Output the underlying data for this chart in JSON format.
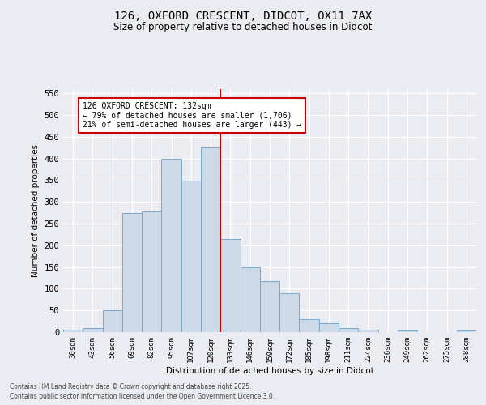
{
  "title1": "126, OXFORD CRESCENT, DIDCOT, OX11 7AX",
  "title2": "Size of property relative to detached houses in Didcot",
  "xlabel": "Distribution of detached houses by size in Didcot",
  "ylabel": "Number of detached properties",
  "categories": [
    "30sqm",
    "43sqm",
    "56sqm",
    "69sqm",
    "82sqm",
    "95sqm",
    "107sqm",
    "120sqm",
    "133sqm",
    "146sqm",
    "159sqm",
    "172sqm",
    "185sqm",
    "198sqm",
    "211sqm",
    "224sqm",
    "236sqm",
    "249sqm",
    "262sqm",
    "275sqm",
    "288sqm"
  ],
  "values": [
    5,
    10,
    50,
    275,
    278,
    400,
    350,
    425,
    215,
    150,
    118,
    90,
    30,
    20,
    10,
    5,
    0,
    3,
    0,
    0,
    3
  ],
  "bar_color": "#ccd9e8",
  "bar_edge_color": "#7aaac8",
  "red_line_index": 8,
  "annotation_text": "126 OXFORD CRESCENT: 132sqm\n← 79% of detached houses are smaller (1,706)\n21% of semi-detached houses are larger (443) →",
  "annotation_box_color": "#ffffff",
  "annotation_box_edge_color": "#cc0000",
  "ylim": [
    0,
    560
  ],
  "yticks": [
    0,
    50,
    100,
    150,
    200,
    250,
    300,
    350,
    400,
    450,
    500,
    550
  ],
  "background_color": "#eaecf2",
  "grid_color": "#ffffff",
  "footer1": "Contains HM Land Registry data © Crown copyright and database right 2025.",
  "footer2": "Contains public sector information licensed under the Open Government Licence 3.0."
}
